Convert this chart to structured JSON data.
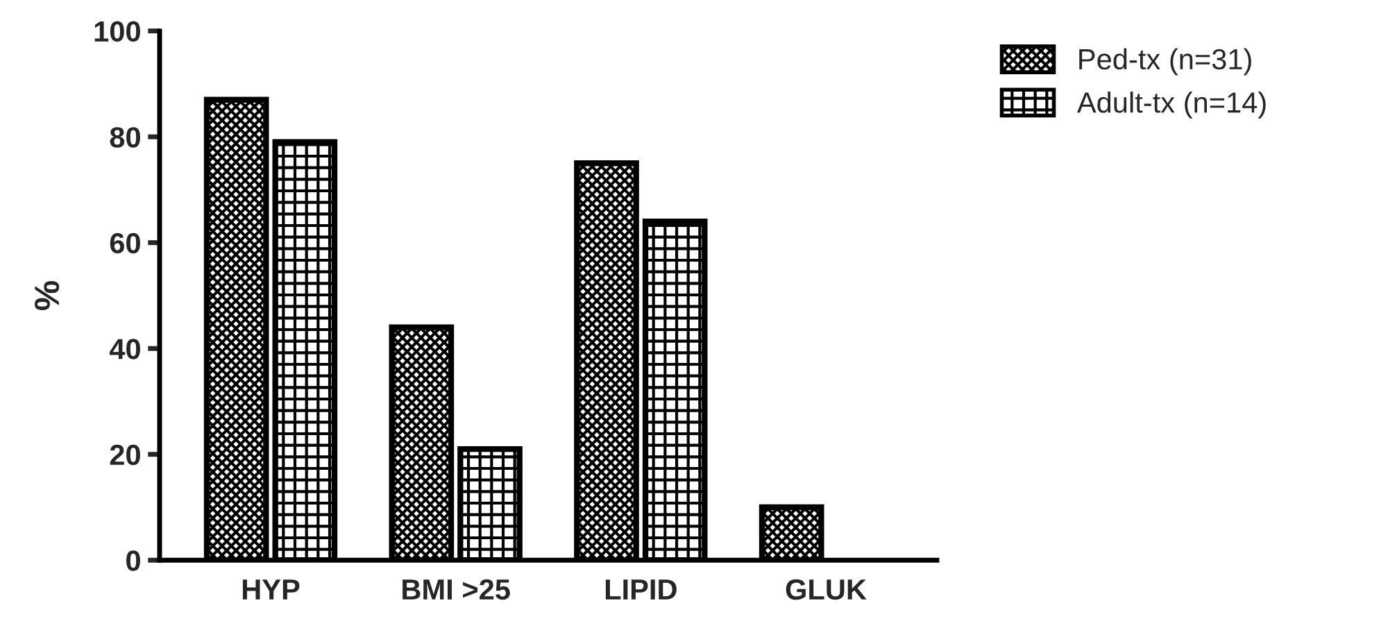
{
  "chart_data": {
    "type": "bar",
    "ylabel": "%",
    "categories": [
      "HYP",
      "BMI >25",
      "LIPID",
      "GLUK"
    ],
    "series": [
      {
        "name": "Ped-tx (n=31)",
        "color": "#000000",
        "values": [
          87,
          44,
          75,
          10
        ]
      },
      {
        "name": "Adult-tx (n=14)",
        "color": "#000000",
        "values": [
          79,
          21,
          64,
          null
        ]
      }
    ],
    "ylim": [
      0,
      100
    ],
    "yticks": [
      0,
      20,
      40,
      60,
      80,
      100
    ],
    "grid": false,
    "legend": "top right"
  }
}
